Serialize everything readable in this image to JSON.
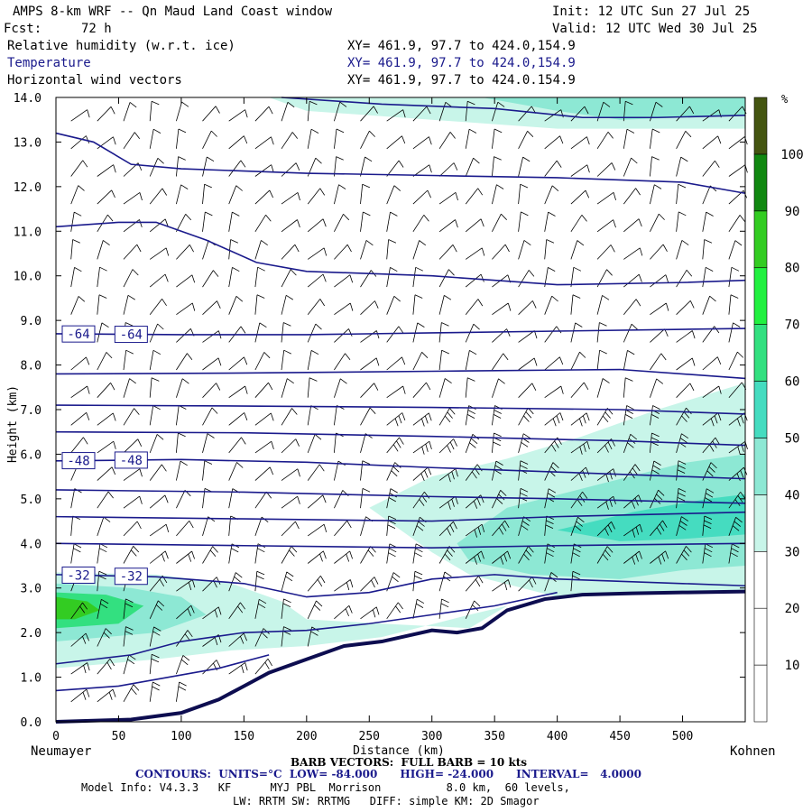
{
  "header": {
    "title": "AMPS 8-km WRF -- Qn Maud Land Coast window",
    "init": "Init: 12 UTC Sun 27 Jul 25",
    "fcst_label": "Fcst:",
    "fcst_value": "72 h",
    "valid": "Valid: 12 UTC Wed 30 Jul 25",
    "fields": [
      {
        "name": "Relative humidity (w.r.t. ice)",
        "xy": "XY= 461.9, 97.7 to 424.0,154.9"
      },
      {
        "name": "Temperature",
        "xy": "XY= 461.9, 97.7 to 424.0,154.9"
      },
      {
        "name": "Horizontal wind vectors",
        "xy": "XY= 461.9, 97.7 to 424.0.154.9"
      }
    ]
  },
  "colors": {
    "contour": "#1a1a8c",
    "terrain": "#0d0d50",
    "rh_levels": [
      "#ffffff",
      "#ffffff",
      "#ffffff",
      "#c8f5e9",
      "#8de8d4",
      "#45dcc0",
      "#33e080",
      "#22f040",
      "#33cc22",
      "#118811",
      "#445511"
    ]
  },
  "footer": {
    "left_station": "Neumayer",
    "right_station": "Kohnen",
    "barb_note": "BARB VECTORS:  FULL BARB = 10 kts",
    "contours": "CONTOURS:  UNITS=°C  LOW= -84.000      HIGH= -24.000      INTERVAL=   4.0000",
    "model_info_1": "Model Info: V4.3.3   KF      MYJ PBL  Morrison          8.0 km,  60 levels,",
    "model_info_2": "LW: RRTM SW: RRTMG   DIFF: simple KM: 2D Smagor"
  },
  "chart_data": {
    "type": "cross-section",
    "xlabel": "Distance (km)",
    "ylabel": "Height (km)",
    "xlim": [
      0,
      550
    ],
    "ylim": [
      0,
      14
    ],
    "x_ticks": [
      0,
      50,
      100,
      150,
      200,
      250,
      300,
      350,
      400,
      450,
      500
    ],
    "y_ticks": [
      "0.0",
      "1.0",
      "2.0",
      "3.0",
      "4.0",
      "5.0",
      "6.0",
      "7.0",
      "8.0",
      "9.0",
      "10.0",
      "11.0",
      "12.0",
      "13.0",
      "14.0"
    ],
    "colorbar": {
      "unit": "%",
      "ticks": [
        10,
        20,
        30,
        40,
        50,
        60,
        70,
        80,
        90,
        100
      ],
      "range": [
        0,
        110
      ]
    },
    "terrain": [
      [
        0,
        0
      ],
      [
        60,
        0.05
      ],
      [
        100,
        0.2
      ],
      [
        130,
        0.5
      ],
      [
        150,
        0.8
      ],
      [
        170,
        1.1
      ],
      [
        200,
        1.4
      ],
      [
        230,
        1.7
      ],
      [
        260,
        1.8
      ],
      [
        300,
        2.05
      ],
      [
        320,
        2.0
      ],
      [
        340,
        2.1
      ],
      [
        360,
        2.5
      ],
      [
        390,
        2.75
      ],
      [
        420,
        2.85
      ],
      [
        460,
        2.88
      ],
      [
        500,
        2.9
      ],
      [
        550,
        2.92
      ]
    ],
    "temperature_contours": [
      {
        "label": "-64",
        "points": [
          [
            0,
            8.7
          ],
          [
            100,
            8.68
          ],
          [
            200,
            8.68
          ],
          [
            300,
            8.72
          ],
          [
            400,
            8.76
          ],
          [
            500,
            8.8
          ],
          [
            550,
            8.82
          ]
        ]
      },
      {
        "label": "",
        "points": [
          [
            0,
            7.8
          ],
          [
            150,
            7.82
          ],
          [
            300,
            7.86
          ],
          [
            450,
            7.9
          ],
          [
            550,
            7.7
          ]
        ]
      },
      {
        "label": "",
        "points": [
          [
            0,
            7.1
          ],
          [
            150,
            7.08
          ],
          [
            300,
            7.05
          ],
          [
            450,
            7.0
          ],
          [
            550,
            6.9
          ]
        ]
      },
      {
        "label": "",
        "points": [
          [
            0,
            6.5
          ],
          [
            150,
            6.48
          ],
          [
            300,
            6.4
          ],
          [
            450,
            6.3
          ],
          [
            550,
            6.2
          ]
        ]
      },
      {
        "label": "-48",
        "points": [
          [
            0,
            5.85
          ],
          [
            100,
            5.88
          ],
          [
            200,
            5.82
          ],
          [
            300,
            5.7
          ],
          [
            400,
            5.6
          ],
          [
            500,
            5.5
          ],
          [
            550,
            5.45
          ]
        ]
      },
      {
        "label": "",
        "points": [
          [
            0,
            5.2
          ],
          [
            150,
            5.15
          ],
          [
            300,
            5.05
          ],
          [
            400,
            5.0
          ],
          [
            550,
            4.9
          ]
        ]
      },
      {
        "label": "",
        "points": [
          [
            0,
            4.6
          ],
          [
            150,
            4.55
          ],
          [
            300,
            4.5
          ],
          [
            400,
            4.6
          ],
          [
            550,
            4.7
          ]
        ]
      },
      {
        "label": "",
        "points": [
          [
            0,
            4.0
          ],
          [
            150,
            3.95
          ],
          [
            300,
            3.9
          ],
          [
            400,
            3.95
          ],
          [
            550,
            4.0
          ]
        ]
      },
      {
        "label": "-32",
        "points": [
          [
            0,
            3.3
          ],
          [
            80,
            3.25
          ],
          [
            150,
            3.1
          ],
          [
            200,
            2.8
          ],
          [
            250,
            2.9
          ],
          [
            300,
            3.2
          ],
          [
            350,
            3.3
          ],
          [
            400,
            3.2
          ],
          [
            500,
            3.1
          ],
          [
            550,
            3.05
          ]
        ]
      },
      {
        "label": "",
        "points": [
          [
            0,
            1.3
          ],
          [
            60,
            1.5
          ],
          [
            100,
            1.8
          ],
          [
            150,
            2.0
          ],
          [
            200,
            2.05
          ],
          [
            250,
            2.2
          ],
          [
            300,
            2.4
          ],
          [
            350,
            2.6
          ],
          [
            400,
            2.9
          ]
        ]
      },
      {
        "label": "",
        "points": [
          [
            0,
            0.7
          ],
          [
            50,
            0.8
          ],
          [
            90,
            1.0
          ],
          [
            130,
            1.2
          ],
          [
            170,
            1.5
          ]
        ]
      },
      {
        "label": "",
        "points": [
          [
            0,
            11.1
          ],
          [
            50,
            11.2
          ],
          [
            80,
            11.2
          ],
          [
            120,
            10.8
          ],
          [
            160,
            10.3
          ],
          [
            200,
            10.1
          ],
          [
            300,
            10.0
          ],
          [
            400,
            9.8
          ],
          [
            500,
            9.85
          ],
          [
            550,
            9.9
          ]
        ]
      },
      {
        "label": "",
        "points": [
          [
            0,
            13.2
          ],
          [
            30,
            13.0
          ],
          [
            60,
            12.5
          ],
          [
            100,
            12.4
          ],
          [
            200,
            12.3
          ],
          [
            300,
            12.25
          ],
          [
            400,
            12.2
          ],
          [
            500,
            12.1
          ],
          [
            550,
            11.85
          ]
        ]
      },
      {
        "label": "",
        "points": [
          [
            180,
            14.0
          ],
          [
            260,
            13.85
          ],
          [
            350,
            13.75
          ],
          [
            420,
            13.55
          ],
          [
            480,
            13.55
          ],
          [
            550,
            13.6
          ]
        ]
      }
    ],
    "rh_regions": [
      {
        "level": 3,
        "points": [
          [
            170,
            14
          ],
          [
            200,
            13.7
          ],
          [
            300,
            13.5
          ],
          [
            400,
            13.3
          ],
          [
            550,
            13.3
          ],
          [
            550,
            14
          ]
        ]
      },
      {
        "level": 4,
        "points": [
          [
            340,
            14
          ],
          [
            400,
            13.7
          ],
          [
            450,
            13.5
          ],
          [
            550,
            13.6
          ],
          [
            550,
            14
          ]
        ]
      },
      {
        "level": 3,
        "points": [
          [
            250,
            4.8
          ],
          [
            300,
            5.5
          ],
          [
            360,
            5.9
          ],
          [
            420,
            6.4
          ],
          [
            480,
            7.0
          ],
          [
            550,
            7.6
          ],
          [
            550,
            2.9
          ],
          [
            400,
            2.8
          ],
          [
            330,
            3.3
          ],
          [
            300,
            3.8
          ]
        ]
      },
      {
        "level": 4,
        "points": [
          [
            320,
            4.0
          ],
          [
            360,
            4.8
          ],
          [
            430,
            5.3
          ],
          [
            500,
            5.8
          ],
          [
            550,
            6.0
          ],
          [
            550,
            3.5
          ],
          [
            500,
            3.4
          ],
          [
            450,
            3.2
          ],
          [
            380,
            3.3
          ],
          [
            330,
            3.6
          ]
        ]
      },
      {
        "level": 5,
        "points": [
          [
            400,
            4.3
          ],
          [
            460,
            4.7
          ],
          [
            520,
            5.0
          ],
          [
            550,
            5.1
          ],
          [
            550,
            4.2
          ],
          [
            500,
            4.1
          ],
          [
            450,
            4.05
          ]
        ]
      },
      {
        "level": 3,
        "points": [
          [
            0,
            3.35
          ],
          [
            80,
            3.3
          ],
          [
            140,
            3.1
          ],
          [
            180,
            2.7
          ],
          [
            200,
            2.3
          ],
          [
            260,
            2.2
          ],
          [
            330,
            2.1
          ],
          [
            360,
            2.6
          ],
          [
            330,
            2.4
          ],
          [
            260,
            1.9
          ],
          [
            200,
            1.7
          ],
          [
            140,
            1.6
          ],
          [
            80,
            1.4
          ],
          [
            0,
            1.2
          ]
        ]
      },
      {
        "level": 4,
        "points": [
          [
            0,
            3.1
          ],
          [
            60,
            3.0
          ],
          [
            100,
            2.8
          ],
          [
            120,
            2.4
          ],
          [
            80,
            2.0
          ],
          [
            0,
            1.8
          ]
        ]
      },
      {
        "level": 6,
        "points": [
          [
            0,
            2.9
          ],
          [
            40,
            2.85
          ],
          [
            70,
            2.6
          ],
          [
            50,
            2.2
          ],
          [
            0,
            2.1
          ]
        ]
      },
      {
        "level": 8,
        "points": [
          [
            0,
            2.8
          ],
          [
            25,
            2.7
          ],
          [
            35,
            2.5
          ],
          [
            15,
            2.3
          ],
          [
            0,
            2.3
          ]
        ]
      }
    ]
  }
}
